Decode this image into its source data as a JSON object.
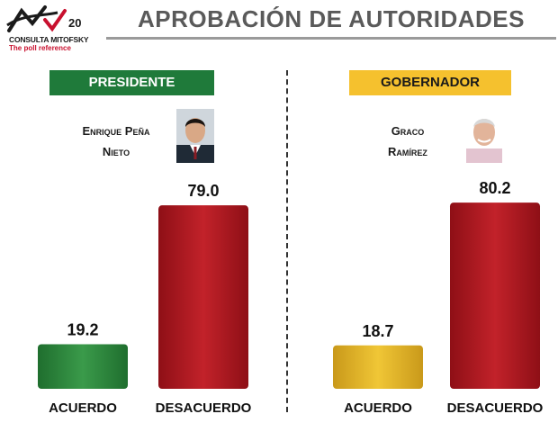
{
  "header": {
    "title": "APROBACIÓN DE AUTORIDADES",
    "logo_brand": "CONSULTA MITOFSKY",
    "logo_tagline": "The poll reference",
    "logo_badge": "20"
  },
  "colors": {
    "acuerdo_presidente": "#2e8b3e",
    "acuerdo_gobernador": "#e0b320",
    "desacuerdo": "#b0141c",
    "presidente_header": "#1f7a3a",
    "gobernador_header": "#f5c12e"
  },
  "panels": [
    {
      "section": "PRESIDENTE",
      "name_line1": "Enrique Peña",
      "name_line2": "Nieto"
    },
    {
      "section": "GOBERNADOR",
      "name_line1": "Graco",
      "name_line2": "Ramírez"
    }
  ],
  "chart_data": [
    {
      "type": "bar",
      "categories": [
        "ACUERDO",
        "DESACUERDO"
      ],
      "values": [
        19.2,
        79.0
      ],
      "labels": [
        "19.2",
        "79.0"
      ],
      "title": "PRESIDENTE"
    },
    {
      "type": "bar",
      "categories": [
        "ACUERDO",
        "DESACUERDO"
      ],
      "values": [
        18.7,
        80.2
      ],
      "labels": [
        "18.7",
        "80.2"
      ],
      "title": "GOBERNADOR"
    }
  ]
}
